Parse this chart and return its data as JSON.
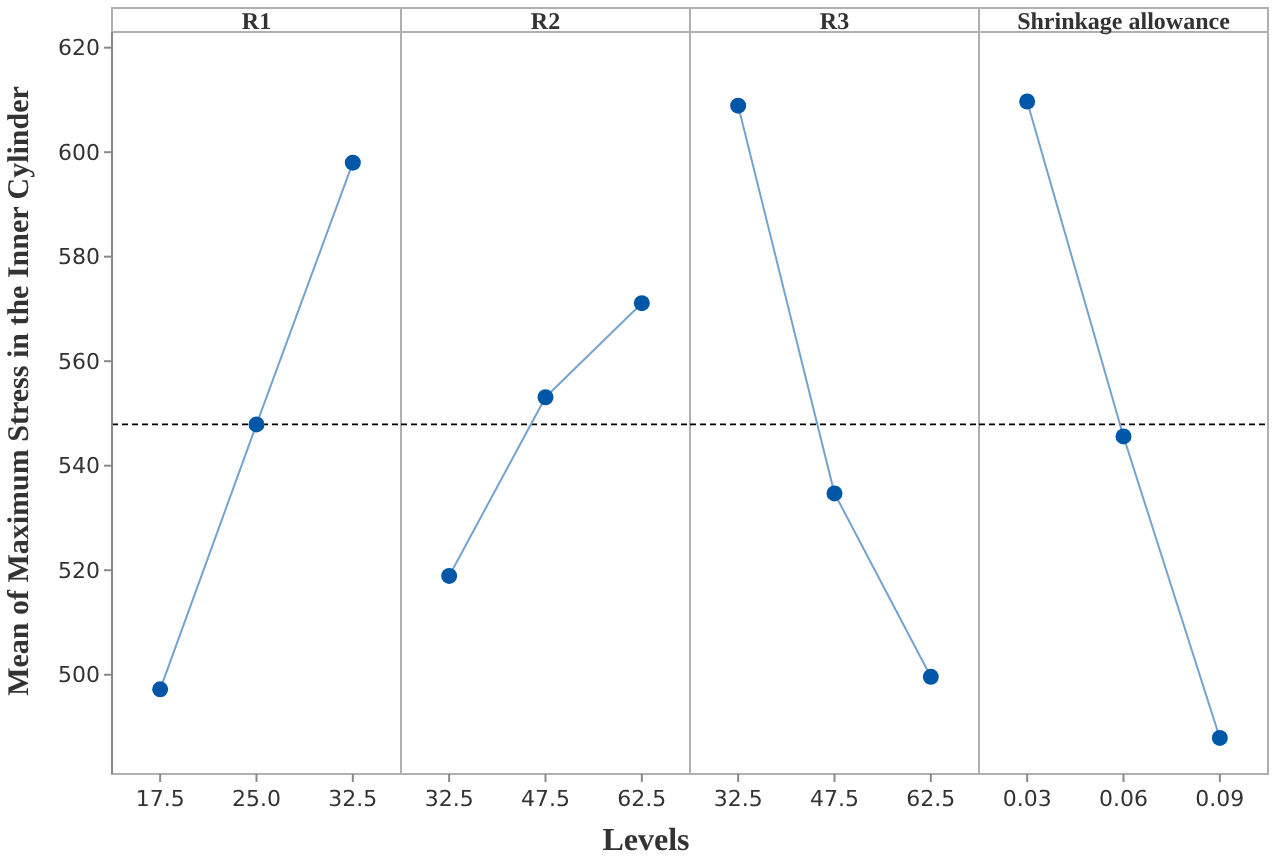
{
  "chart_data": [
    {
      "type": "line",
      "title": "R1",
      "categories": [
        "17.5",
        "25.0",
        "32.5"
      ],
      "series": [
        {
          "color": "#0057a8",
          "values": [
            497.2,
            547.9,
            598.0
          ]
        }
      ],
      "ylim": [
        481,
        623
      ],
      "yticks": [
        500,
        520,
        540,
        560,
        580,
        600,
        620
      ],
      "ylabel": "Mean of Maximum Stress in the Inner Cylinder",
      "ref_lines": [
        {
          "axis": "y",
          "value": 547.9,
          "line_style": "dashed"
        }
      ],
      "marker": "circle",
      "grid": false
    },
    {
      "type": "line",
      "title": "R2",
      "categories": [
        "32.5",
        "47.5",
        "62.5"
      ],
      "series": [
        {
          "color": "#0057a8",
          "values": [
            518.9,
            553.1,
            571.1
          ]
        }
      ],
      "ylim": [
        481,
        623
      ],
      "yticks": [
        500,
        520,
        540,
        560,
        580,
        600,
        620
      ],
      "tick_labels": "x",
      "xlabel": "Levels",
      "ref_lines": [
        {
          "axis": "y",
          "value": 547.9,
          "line_style": "dashed"
        }
      ],
      "marker": "circle",
      "grid": false
    },
    {
      "type": "line",
      "title": "R3",
      "categories": [
        "32.5",
        "47.5",
        "62.5"
      ],
      "series": [
        {
          "color": "#0057a8",
          "values": [
            608.9,
            534.7,
            499.6
          ]
        }
      ],
      "ylim": [
        481,
        623
      ],
      "yticks": [
        500,
        520,
        540,
        560,
        580,
        600,
        620
      ],
      "tick_labels": "x",
      "ref_lines": [
        {
          "axis": "y",
          "value": 547.9,
          "line_style": "dashed"
        }
      ],
      "marker": "circle",
      "grid": false
    },
    {
      "type": "line",
      "title": "Shrinkage allowance",
      "categories": [
        "0.03",
        "0.06",
        "0.09"
      ],
      "series": [
        {
          "color": "#0057a8",
          "values": [
            609.7,
            545.6,
            487.9
          ]
        }
      ],
      "ylim": [
        481,
        623
      ],
      "yticks": [
        500,
        520,
        540,
        560,
        580,
        600,
        620
      ],
      "tick_labels": "x",
      "ref_lines": [
        {
          "axis": "y",
          "value": 547.9,
          "line_style": "dashed"
        }
      ],
      "marker": "circle",
      "grid": false
    }
  ]
}
